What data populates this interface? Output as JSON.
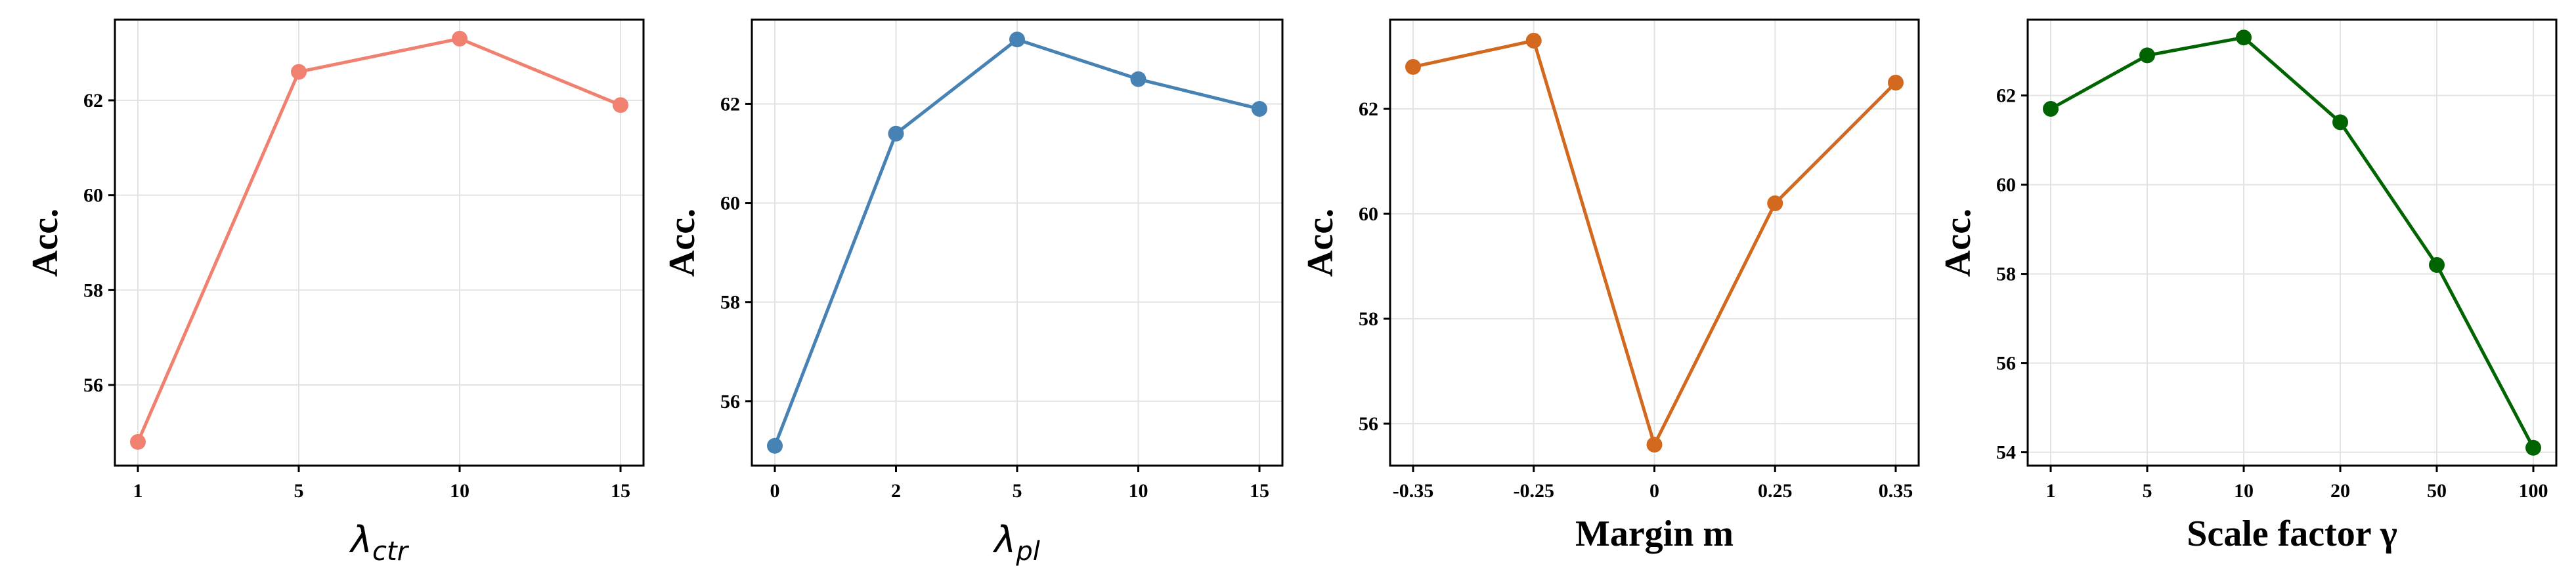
{
  "chart_data": [
    {
      "type": "line",
      "categories": [
        "1",
        "5",
        "10",
        "15"
      ],
      "values": [
        54.8,
        62.6,
        63.3,
        61.9
      ],
      "color": "#F08070",
      "xlabel_symbol": "λ",
      "xlabel_subscript": "ctr",
      "ylabel": "Acc.",
      "ylim": [
        54.3,
        63.7
      ],
      "yticks": [
        56,
        58,
        60,
        62
      ],
      "grid": true
    },
    {
      "type": "line",
      "categories": [
        "0",
        "2",
        "5",
        "10",
        "15"
      ],
      "values": [
        55.1,
        61.4,
        63.3,
        62.5,
        61.9
      ],
      "color": "#4682B4",
      "xlabel_symbol": "λ",
      "xlabel_subscript": "pl",
      "ylabel": "Acc.",
      "ylim": [
        54.7,
        63.7
      ],
      "yticks": [
        56,
        58,
        60,
        62
      ],
      "grid": true
    },
    {
      "type": "line",
      "categories": [
        "-0.35",
        "-0.25",
        "0",
        "0.25",
        "0.35"
      ],
      "values": [
        62.8,
        63.3,
        55.6,
        60.2,
        62.5
      ],
      "color": "#D2691E",
      "xlabel": "Margin m",
      "ylabel": "Acc.",
      "ylim": [
        55.2,
        63.7
      ],
      "yticks": [
        56,
        58,
        60,
        62
      ],
      "grid": true
    },
    {
      "type": "line",
      "categories": [
        "1",
        "5",
        "10",
        "20",
        "50",
        "100"
      ],
      "values": [
        61.7,
        62.9,
        63.3,
        61.4,
        58.2,
        54.1
      ],
      "color": "#006400",
      "xlabel": "Scale factor γ",
      "ylabel": "Acc.",
      "ylim": [
        53.7,
        63.7
      ],
      "yticks": [
        54,
        56,
        58,
        60,
        62
      ],
      "grid": true
    }
  ]
}
